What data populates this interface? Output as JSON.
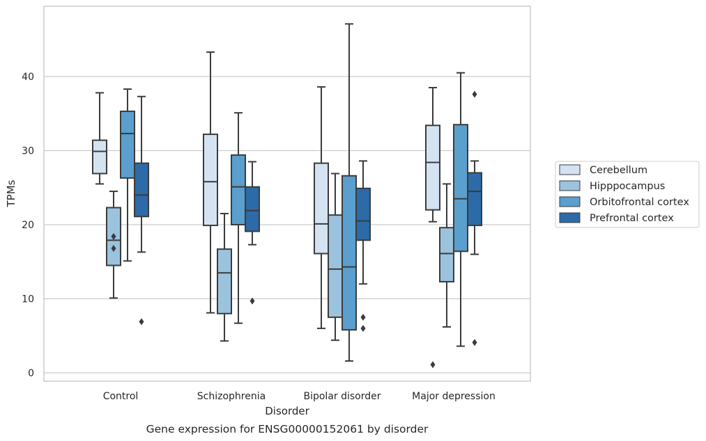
{
  "chart_data": {
    "type": "box",
    "caption": "Gene expression for ENSG00000152061 by disorder",
    "xlabel": "Disorder",
    "ylabel": "TPMs",
    "ylim": [
      -1,
      49
    ],
    "yticks": [
      0,
      10,
      20,
      30,
      40
    ],
    "grid": "horizontal",
    "legend_position": "right",
    "categories": [
      "Control",
      "Schizophrenia",
      "Bipolar disorder",
      "Major depression"
    ],
    "series": [
      {
        "name": "Cerebellum",
        "color": "#d3e3f2",
        "boxes": [
          {
            "whisker_low": 25.5,
            "q1": 26.9,
            "median": 29.9,
            "q3": 31.4,
            "whisker_high": 37.8,
            "outliers": []
          },
          {
            "whisker_low": 8.1,
            "q1": 19.9,
            "median": 25.8,
            "q3": 32.2,
            "whisker_high": 43.3,
            "outliers": []
          },
          {
            "whisker_low": 6.0,
            "q1": 16.1,
            "median": 20.1,
            "q3": 28.3,
            "whisker_high": 38.6,
            "outliers": []
          },
          {
            "whisker_low": 20.4,
            "q1": 22.0,
            "median": 28.4,
            "q3": 33.4,
            "whisker_high": 38.5,
            "outliers": [
              1.1
            ]
          }
        ]
      },
      {
        "name": "Hipppocampus",
        "color": "#9bc3de",
        "boxes": [
          {
            "whisker_low": 10.1,
            "q1": 14.5,
            "median": 17.9,
            "q3": 22.3,
            "whisker_high": 24.5,
            "outliers": [
              18.4,
              16.8
            ]
          },
          {
            "whisker_low": 4.3,
            "q1": 8.0,
            "median": 13.5,
            "q3": 16.7,
            "whisker_high": 21.5,
            "outliers": []
          },
          {
            "whisker_low": 4.4,
            "q1": 7.5,
            "median": 14.0,
            "q3": 21.3,
            "whisker_high": 26.9,
            "outliers": []
          },
          {
            "whisker_low": 6.2,
            "q1": 12.3,
            "median": 16.1,
            "q3": 19.6,
            "whisker_high": 25.5,
            "outliers": []
          }
        ]
      },
      {
        "name": "Orbitofrontal cortex",
        "color": "#5a9fcd",
        "boxes": [
          {
            "whisker_low": 15.1,
            "q1": 26.3,
            "median": 32.3,
            "q3": 35.3,
            "whisker_high": 38.3,
            "outliers": []
          },
          {
            "whisker_low": 6.7,
            "q1": 20.0,
            "median": 25.1,
            "q3": 29.4,
            "whisker_high": 35.1,
            "outliers": []
          },
          {
            "whisker_low": 1.6,
            "q1": 5.8,
            "median": 14.3,
            "q3": 26.6,
            "whisker_high": 47.1,
            "outliers": []
          },
          {
            "whisker_low": 3.6,
            "q1": 16.4,
            "median": 23.5,
            "q3": 33.5,
            "whisker_high": 40.5,
            "outliers": []
          }
        ]
      },
      {
        "name": "Prefrontal cortex",
        "color": "#2d6aa8",
        "boxes": [
          {
            "whisker_low": 16.3,
            "q1": 21.1,
            "median": 24.0,
            "q3": 28.3,
            "whisker_high": 37.3,
            "outliers": [
              6.9
            ]
          },
          {
            "whisker_low": 17.3,
            "q1": 19.1,
            "median": 21.9,
            "q3": 25.1,
            "whisker_high": 28.5,
            "outliers": [
              9.7
            ]
          },
          {
            "whisker_low": 12.0,
            "q1": 17.9,
            "median": 20.5,
            "q3": 24.9,
            "whisker_high": 28.6,
            "outliers": [
              7.5,
              6.0
            ]
          },
          {
            "whisker_low": 16.0,
            "q1": 19.9,
            "median": 24.5,
            "q3": 27.0,
            "whisker_high": 28.6,
            "outliers": [
              37.6,
              4.1
            ]
          }
        ]
      }
    ]
  }
}
